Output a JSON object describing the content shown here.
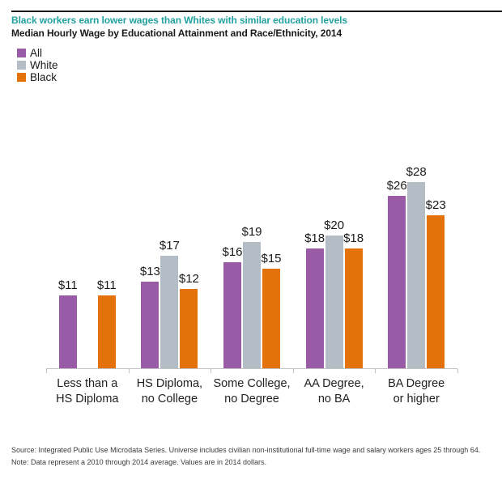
{
  "header": {
    "title": "Black workers earn lower wages than Whites with similar education levels",
    "subtitle": "Median Hourly Wage by Educational Attainment and Race/Ethnicity, 2014"
  },
  "legend": {
    "items": [
      {
        "label": "All",
        "color": "#9a5ba6"
      },
      {
        "label": "White",
        "color": "#b4bdc6"
      },
      {
        "label": "Black",
        "color": "#e4720a"
      }
    ]
  },
  "chart_data": {
    "type": "bar",
    "title": "Black workers earn lower wages than Whites with similar education levels",
    "subtitle": "Median Hourly Wage by Educational Attainment and Race/Ethnicity, 2014",
    "categories": [
      "Less than a\nHS Diploma",
      "HS Diploma,\nno College",
      "Some College,\nno Degree",
      "AA Degree,\nno BA",
      "BA Degree\nor higher"
    ],
    "series": [
      {
        "name": "All",
        "color": "#9a5ba6",
        "values": [
          11,
          13,
          16,
          18,
          26
        ]
      },
      {
        "name": "White",
        "color": "#b4bdc6",
        "values": [
          null,
          17,
          19,
          20,
          28
        ]
      },
      {
        "name": "Black",
        "color": "#e4720a",
        "values": [
          11,
          12,
          15,
          18,
          23
        ]
      }
    ],
    "value_prefix": "$",
    "data_labels": true,
    "ylim": [
      0,
      30
    ],
    "grid": false,
    "legend_position": "top-left",
    "accent_color": "#23a1a1",
    "axis_color": "#c2c2c2"
  },
  "footer": {
    "source": "Source: Integrated Public Use Microdata Series. Universe includes civilian non-institutional full-time wage and salary workers ages 25 through 64.",
    "note": "Note: Data represent a 2010 through 2014 average. Values are in 2014 dollars."
  }
}
